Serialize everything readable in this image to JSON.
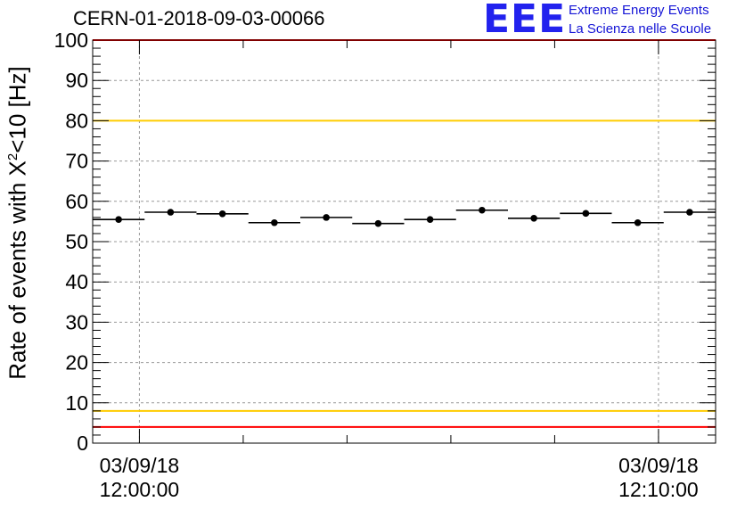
{
  "header": {
    "run_id": "CERN-01-2018-09-03-00066",
    "logo_text": "EEE",
    "logo_line1": "Extreme Energy Events",
    "logo_line2": "La Scienza nelle Scuole"
  },
  "chart_data": {
    "type": "scatter",
    "title": "CERN-01-2018-09-03-00066",
    "ylabel_prefix": "Rate of events with X",
    "ylabel_sup": "2",
    "ylabel_suffix": "<10 [Hz]",
    "ylim": [
      0,
      100
    ],
    "ytick_labels": [
      "0",
      "10",
      "20",
      "30",
      "40",
      "50",
      "60",
      "70",
      "80",
      "90",
      "100"
    ],
    "xtick_labels": [
      {
        "date": "03/09/18",
        "time": "12:00:00"
      },
      {
        "date": "03/09/18",
        "time": "12:10:00"
      }
    ],
    "grid": true,
    "x_unit": "minutes after 12:00:00 on 03/09/18",
    "xlim": [
      -0.9,
      11.1
    ],
    "bin_width": 1.0,
    "x": [
      -0.4,
      0.6,
      1.6,
      2.6,
      3.6,
      4.6,
      5.6,
      6.6,
      7.6,
      8.6,
      9.6,
      10.6
    ],
    "values": [
      55.5,
      57.3,
      56.9,
      54.7,
      56.0,
      54.5,
      55.5,
      57.8,
      55.8,
      57.0,
      54.7,
      57.3
    ],
    "reference_lines": [
      {
        "value": 100,
        "color": "#ff0000"
      },
      {
        "value": 80,
        "color": "#ffcc00"
      },
      {
        "value": 8,
        "color": "#ffcc00"
      },
      {
        "value": 4,
        "color": "#ff0000"
      }
    ],
    "marker_color": "#000000"
  }
}
